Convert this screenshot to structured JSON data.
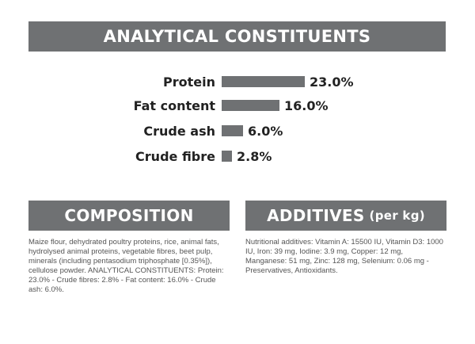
{
  "header": {
    "title": "ANALYTICAL CONSTITUENTS"
  },
  "constituents": [
    {
      "label": "Protein",
      "value_text": "23.0%",
      "value": 23.0
    },
    {
      "label": "Fat content",
      "value_text": "16.0%",
      "value": 16.0
    },
    {
      "label": "Crude ash",
      "value_text": "6.0%",
      "value": 6.0
    },
    {
      "label": "Crude fibre",
      "value_text": "2.8%",
      "value": 2.8
    }
  ],
  "composition": {
    "title": "COMPOSITION",
    "text": "Maize flour, dehydrated poultry proteins, rice, animal fats, hydrolysed animal proteins, vegetable fibres, beet pulp, minerals (including pentasodium triphosphate [0.35%]), cellulose powder. ANALYTICAL CONSTITUENTS: Protein: 23.0% - Crude fibres: 2.8% - Fat content: 16.0% - Crude ash: 6.0%."
  },
  "additives": {
    "title": "ADDITIVES",
    "title_suffix": "(per kg)",
    "text": "Nutritional additives: Vitamin A: 15500 IU, Vitamin D3: 1000 IU, Iron: 39 mg, Iodine: 3.9 mg, Copper: 12 mg, Manganese: 51 mg, Zinc: 128 mg, Selenium: 0.06 mg - Preservatives, Antioxidants."
  },
  "colors": {
    "banner": "#6f7173",
    "bar": "#6f7173"
  }
}
